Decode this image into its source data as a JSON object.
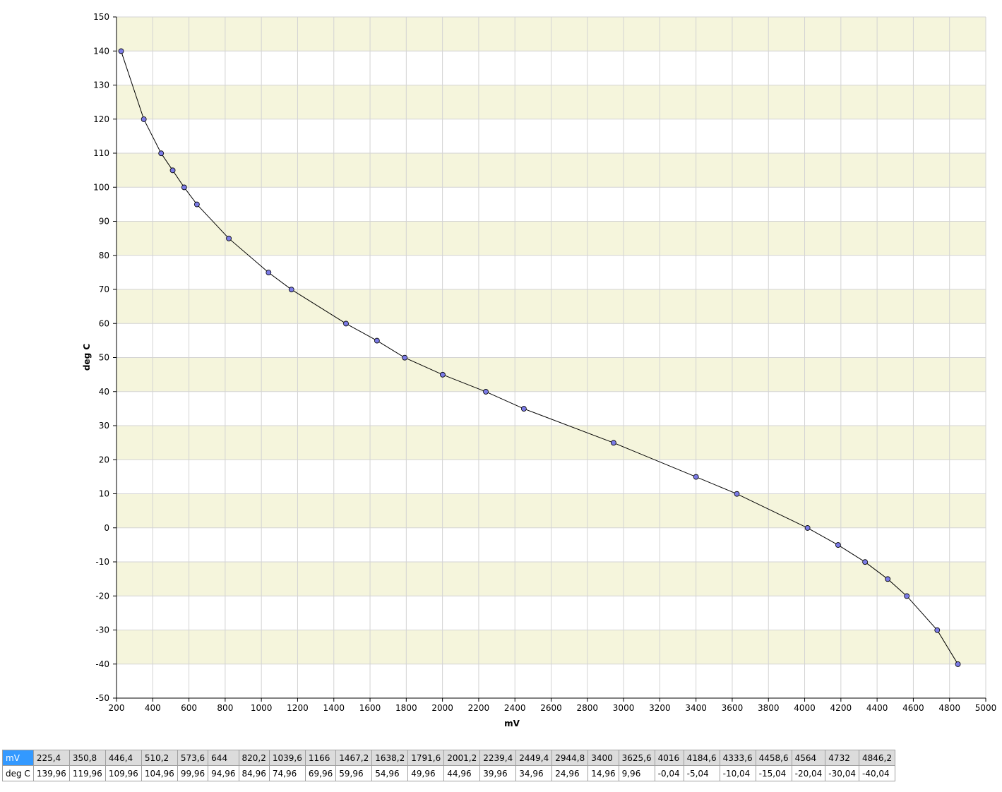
{
  "chart_data": {
    "type": "line",
    "x_label": "mV",
    "y_label": "deg C",
    "x": [
      225.4,
      350.8,
      446.4,
      510.2,
      573.6,
      644,
      820.2,
      1039.6,
      1166,
      1467.2,
      1638.2,
      1791.6,
      2001.2,
      2239.4,
      2449.4,
      2944.8,
      3400,
      3625.6,
      4016,
      4184.6,
      4333.6,
      4458.6,
      4564,
      4732,
      4846.2
    ],
    "series": [
      {
        "name": "deg C",
        "color": "#000000",
        "values": [
          139.96,
          119.96,
          109.96,
          104.96,
          99.96,
          94.96,
          84.96,
          74.96,
          69.96,
          59.96,
          54.96,
          49.96,
          44.96,
          39.96,
          34.96,
          24.96,
          14.96,
          9.96,
          -0.04,
          -5.04,
          -10.04,
          -15.04,
          -20.04,
          -30.04,
          -40.04
        ]
      }
    ],
    "marker_color": "#7b7be6",
    "xlim": [
      200,
      5000
    ],
    "xticks": [
      200,
      400,
      600,
      800,
      1000,
      1200,
      1400,
      1600,
      1800,
      2000,
      2200,
      2400,
      2600,
      2800,
      3000,
      3200,
      3400,
      3600,
      3800,
      4000,
      4200,
      4400,
      4600,
      4800,
      5000
    ],
    "ylim": [
      -50,
      150
    ],
    "yticks": [
      -50,
      -40,
      -30,
      -20,
      -10,
      0,
      10,
      20,
      30,
      40,
      50,
      60,
      70,
      80,
      90,
      100,
      110,
      120,
      130,
      140,
      150
    ],
    "grid": true,
    "band_color": "#f5f5dc"
  },
  "table": {
    "rows": [
      [
        "mV",
        "225,4",
        "350,8",
        "446,4",
        "510,2",
        "573,6",
        "644",
        "820,2",
        "1039,6",
        "1166",
        "1467,2",
        "1638,2",
        "1791,6",
        "2001,2",
        "2239,4",
        "2449,4",
        "2944,8",
        "3400",
        "3625,6",
        "4016",
        "4184,6",
        "4333,6",
        "4458,6",
        "4564",
        "4732",
        "4846,2"
      ],
      [
        "deg C",
        "139,96",
        "119,96",
        "109,96",
        "104,96",
        "99,96",
        "94,96",
        "84,96",
        "74,96",
        "69,96",
        "59,96",
        "54,96",
        "49,96",
        "44,96",
        "39,96",
        "34,96",
        "24,96",
        "14,96",
        "9,96",
        "-0,04",
        "-5,04",
        "-10,04",
        "-15,04",
        "-20,04",
        "-30,04",
        "-40,04"
      ]
    ]
  }
}
